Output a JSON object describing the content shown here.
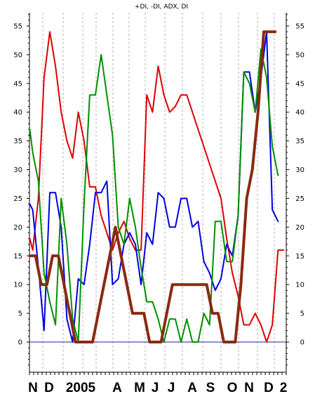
{
  "chart_data": {
    "type": "line",
    "title": "+DI, -DI, ADX, DI",
    "ylim": [
      -5,
      58
    ],
    "grid": "vertical dashed",
    "y_ticks": [
      0,
      5,
      10,
      15,
      20,
      25,
      30,
      35,
      40,
      45,
      50,
      55
    ],
    "x_tick_labels": [
      "N",
      "D",
      "2005",
      "A",
      "M",
      "J",
      "J",
      "A",
      "S",
      "O",
      "N",
      "D",
      "2"
    ],
    "series": [
      {
        "key": "red",
        "color": "#e00000",
        "width": 2,
        "values": [
          [
            0,
            18
          ],
          [
            1,
            16
          ],
          [
            3,
            25
          ],
          [
            5,
            46
          ],
          [
            7,
            54
          ],
          [
            9,
            48
          ],
          [
            11,
            40
          ],
          [
            13,
            35
          ],
          [
            15,
            32
          ],
          [
            17,
            40
          ],
          [
            19,
            35
          ],
          [
            21,
            27
          ],
          [
            23,
            27
          ],
          [
            25,
            22
          ],
          [
            27,
            19
          ],
          [
            29,
            16
          ],
          [
            31,
            19
          ],
          [
            33,
            21
          ],
          [
            35,
            18
          ],
          [
            37,
            16
          ],
          [
            39,
            16
          ],
          [
            41,
            43
          ],
          [
            43,
            40
          ],
          [
            45,
            48
          ],
          [
            47,
            43
          ],
          [
            49,
            40
          ],
          [
            51,
            41
          ],
          [
            53,
            43
          ],
          [
            55,
            43
          ],
          [
            57,
            40
          ],
          [
            59,
            37
          ],
          [
            61,
            34
          ],
          [
            63,
            31
          ],
          [
            65,
            28
          ],
          [
            67,
            25
          ],
          [
            69,
            18
          ],
          [
            71,
            12
          ],
          [
            73,
            8
          ],
          [
            75,
            3
          ],
          [
            77,
            3
          ],
          [
            79,
            5
          ],
          [
            81,
            3
          ],
          [
            83,
            0
          ],
          [
            85,
            3
          ],
          [
            87,
            16
          ],
          [
            89,
            16
          ]
        ]
      },
      {
        "key": "blue",
        "color": "#0000e0",
        "width": 2,
        "values": [
          [
            0,
            24
          ],
          [
            1,
            23
          ],
          [
            3,
            13
          ],
          [
            5,
            2
          ],
          [
            7,
            26
          ],
          [
            9,
            26
          ],
          [
            11,
            20
          ],
          [
            13,
            4
          ],
          [
            15,
            0
          ],
          [
            17,
            11
          ],
          [
            19,
            10
          ],
          [
            21,
            17
          ],
          [
            23,
            26
          ],
          [
            25,
            26
          ],
          [
            27,
            28
          ],
          [
            29,
            10
          ],
          [
            31,
            11
          ],
          [
            33,
            17
          ],
          [
            35,
            19
          ],
          [
            37,
            17
          ],
          [
            39,
            10
          ],
          [
            41,
            19
          ],
          [
            43,
            17
          ],
          [
            45,
            26
          ],
          [
            47,
            25
          ],
          [
            49,
            20
          ],
          [
            51,
            20
          ],
          [
            53,
            25
          ],
          [
            55,
            25
          ],
          [
            57,
            20
          ],
          [
            59,
            21
          ],
          [
            61,
            14
          ],
          [
            63,
            12
          ],
          [
            65,
            9
          ],
          [
            67,
            11
          ],
          [
            69,
            17
          ],
          [
            71,
            15
          ],
          [
            73,
            22
          ],
          [
            75,
            47
          ],
          [
            77,
            47
          ],
          [
            79,
            40
          ],
          [
            81,
            46
          ],
          [
            83,
            54
          ],
          [
            85,
            23
          ],
          [
            87,
            21
          ]
        ]
      },
      {
        "key": "green",
        "color": "#009000",
        "width": 2,
        "values": [
          [
            0,
            37
          ],
          [
            1,
            33
          ],
          [
            3,
            28
          ],
          [
            5,
            12
          ],
          [
            7,
            7
          ],
          [
            9,
            3
          ],
          [
            11,
            25
          ],
          [
            13,
            17
          ],
          [
            15,
            4
          ],
          [
            17,
            0
          ],
          [
            19,
            24
          ],
          [
            21,
            43
          ],
          [
            23,
            43
          ],
          [
            25,
            50
          ],
          [
            27,
            43
          ],
          [
            29,
            36
          ],
          [
            31,
            20
          ],
          [
            33,
            17
          ],
          [
            35,
            25
          ],
          [
            37,
            20
          ],
          [
            39,
            13
          ],
          [
            41,
            7
          ],
          [
            43,
            7
          ],
          [
            45,
            4
          ],
          [
            47,
            0
          ],
          [
            49,
            4
          ],
          [
            51,
            4
          ],
          [
            53,
            0
          ],
          [
            55,
            4
          ],
          [
            57,
            0
          ],
          [
            59,
            0
          ],
          [
            61,
            5
          ],
          [
            63,
            3
          ],
          [
            65,
            21
          ],
          [
            67,
            21
          ],
          [
            69,
            14
          ],
          [
            71,
            14
          ],
          [
            73,
            22
          ],
          [
            75,
            47
          ],
          [
            77,
            45
          ],
          [
            79,
            40
          ],
          [
            81,
            51
          ],
          [
            83,
            46
          ],
          [
            85,
            34
          ],
          [
            87,
            29
          ]
        ]
      },
      {
        "key": "brown",
        "color": "#8a2a10",
        "width": 4,
        "values": [
          [
            0,
            15
          ],
          [
            2,
            15
          ],
          [
            4,
            10
          ],
          [
            6,
            10
          ],
          [
            8,
            15
          ],
          [
            10,
            15
          ],
          [
            12,
            10
          ],
          [
            14,
            5
          ],
          [
            16,
            0
          ],
          [
            20,
            0
          ],
          [
            22,
            0
          ],
          [
            24,
            5
          ],
          [
            26,
            10
          ],
          [
            28,
            15
          ],
          [
            30,
            20
          ],
          [
            32,
            15
          ],
          [
            34,
            10
          ],
          [
            36,
            5
          ],
          [
            40,
            5
          ],
          [
            42,
            0
          ],
          [
            46,
            0
          ],
          [
            48,
            5
          ],
          [
            50,
            10
          ],
          [
            54,
            10
          ],
          [
            58,
            10
          ],
          [
            62,
            10
          ],
          [
            64,
            5
          ],
          [
            66,
            5
          ],
          [
            68,
            0
          ],
          [
            72,
            0
          ],
          [
            74,
            10
          ],
          [
            76,
            25
          ],
          [
            78,
            30
          ],
          [
            80,
            40
          ],
          [
            82,
            54
          ],
          [
            84,
            54
          ],
          [
            86,
            54
          ]
        ]
      }
    ]
  }
}
